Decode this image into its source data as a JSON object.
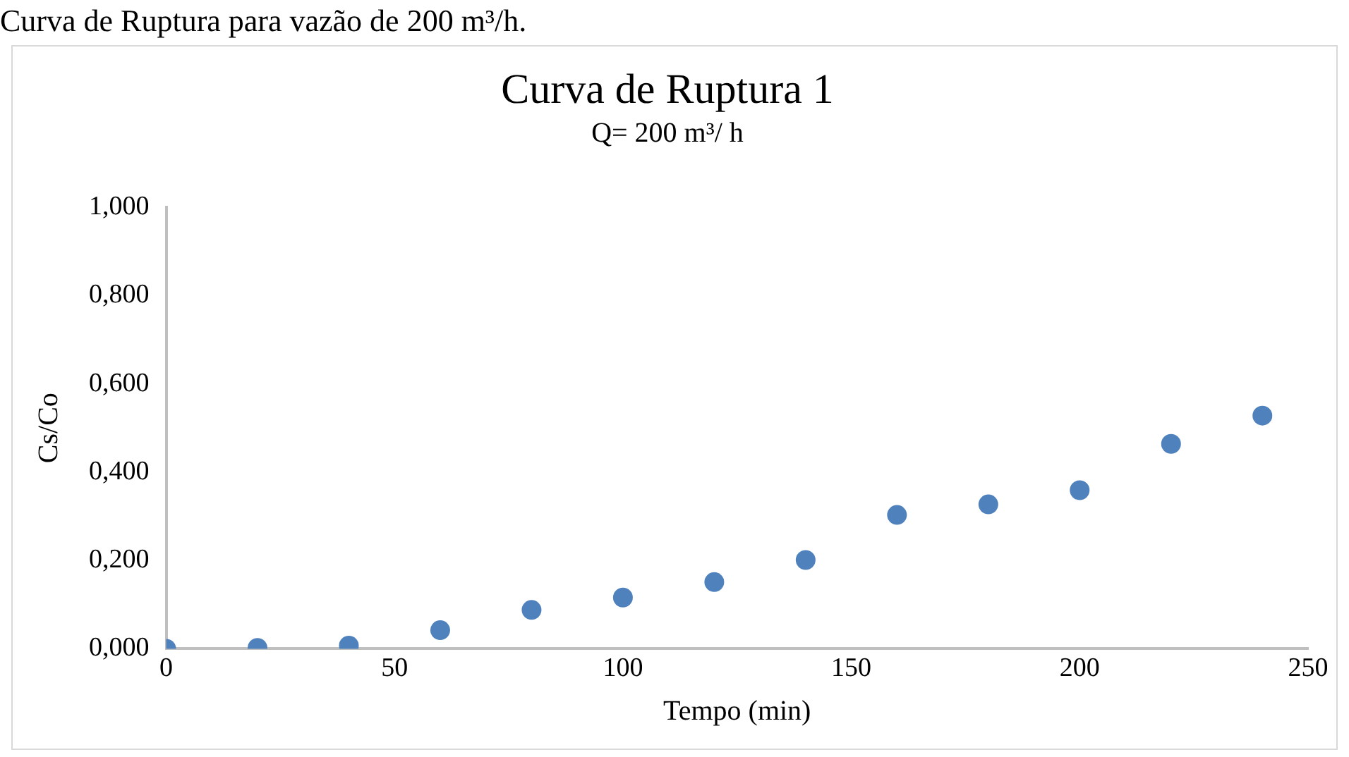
{
  "chart_data": {
    "type": "scatter",
    "title": "Curva de Ruptura 1",
    "subtitle": "Q= 200 m³/ h",
    "xlabel": "Tempo (min)",
    "ylabel": "Cs/Co",
    "annotations": [
      "Curva de Ruptura para vazão de 200 m³/h."
    ],
    "x": [
      0,
      20,
      40,
      60,
      80,
      100,
      120,
      140,
      160,
      180,
      200,
      220,
      240
    ],
    "series": [
      {
        "color": "#4f81bd",
        "values": [
          0,
          0.002,
          0.007,
          0.042,
          0.088,
          0.116,
          0.151,
          0.201,
          0.303,
          0.327,
          0.359,
          0.464,
          0.528
        ]
      }
    ],
    "xlim": [
      0,
      250
    ],
    "xticks": [
      0,
      50,
      100,
      150,
      200,
      250
    ],
    "ylim": [
      0,
      1
    ],
    "yticks": [
      {
        "value": 0,
        "label": "0,000"
      },
      {
        "value": 0.2,
        "label": "0,200"
      },
      {
        "value": 0.4,
        "label": "0,400"
      },
      {
        "value": 0.6,
        "label": "0,600"
      },
      {
        "value": 0.8,
        "label": "0,800"
      },
      {
        "value": 1,
        "label": "1,000"
      }
    ],
    "grid": false,
    "legend": false,
    "marker": "circle"
  }
}
